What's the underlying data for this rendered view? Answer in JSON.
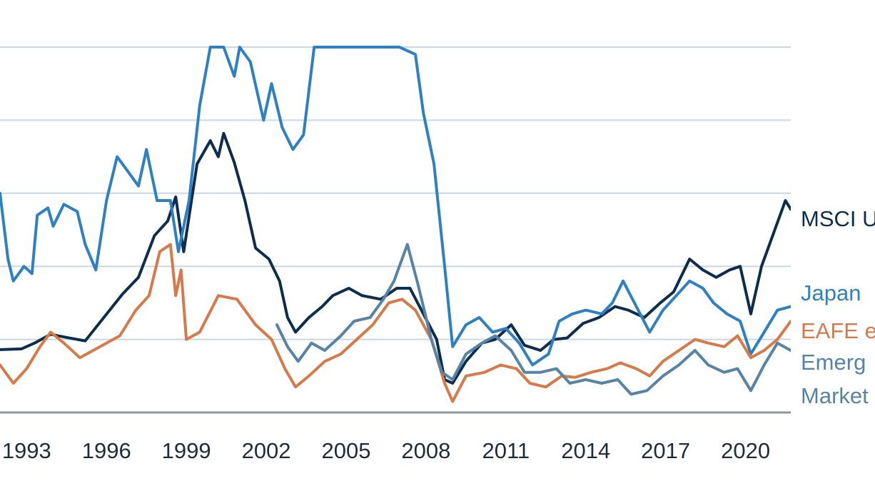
{
  "chart_data": {
    "type": "line",
    "title": "",
    "xlabel": "",
    "ylabel": "",
    "grid": true,
    "x_tick_labels": [
      "1993",
      "1996",
      "1999",
      "2002",
      "2005",
      "2008",
      "2011",
      "2014",
      "2017",
      "2020"
    ],
    "x_ticks": [
      1993,
      1996,
      1999,
      2002,
      2005,
      2008,
      2011,
      2014,
      2017,
      2020
    ],
    "xlim": [
      1992,
      2021.7
    ],
    "ylim": [
      0,
      5
    ],
    "y_gridlines": [
      1,
      2,
      3,
      4,
      5
    ],
    "series": [
      {
        "name": "MSCI U",
        "color": "#0d2d4e",
        "points": [
          [
            1992.0,
            0.86
          ],
          [
            1992.8,
            0.87
          ],
          [
            1993.3,
            0.95
          ],
          [
            1993.9,
            1.07
          ],
          [
            1994.6,
            1.02
          ],
          [
            1995.2,
            0.98
          ],
          [
            1995.9,
            1.3
          ],
          [
            1996.6,
            1.62
          ],
          [
            1997.2,
            1.85
          ],
          [
            1997.8,
            2.42
          ],
          [
            1998.3,
            2.62
          ],
          [
            1998.6,
            2.95
          ],
          [
            1998.9,
            2.2
          ],
          [
            1999.4,
            3.4
          ],
          [
            1999.9,
            3.72
          ],
          [
            2000.2,
            3.5
          ],
          [
            2000.4,
            3.82
          ],
          [
            2000.8,
            3.42
          ],
          [
            2001.2,
            2.9
          ],
          [
            2001.6,
            2.25
          ],
          [
            2002.1,
            2.1
          ],
          [
            2002.5,
            1.8
          ],
          [
            2002.8,
            1.3
          ],
          [
            2003.1,
            1.1
          ],
          [
            2003.6,
            1.3
          ],
          [
            2004.1,
            1.45
          ],
          [
            2004.5,
            1.6
          ],
          [
            2005.1,
            1.7
          ],
          [
            2005.6,
            1.6
          ],
          [
            2006.3,
            1.55
          ],
          [
            2006.9,
            1.7
          ],
          [
            2007.4,
            1.7
          ],
          [
            2007.9,
            1.35
          ],
          [
            2008.4,
            1.0
          ],
          [
            2008.7,
            0.45
          ],
          [
            2009.0,
            0.4
          ],
          [
            2009.5,
            0.7
          ],
          [
            2010.1,
            0.95
          ],
          [
            2010.6,
            1.0
          ],
          [
            2011.2,
            1.2
          ],
          [
            2011.7,
            0.92
          ],
          [
            2012.3,
            0.85
          ],
          [
            2012.8,
            1.0
          ],
          [
            2013.3,
            1.02
          ],
          [
            2013.9,
            1.22
          ],
          [
            2014.5,
            1.3
          ],
          [
            2015.1,
            1.45
          ],
          [
            2015.6,
            1.4
          ],
          [
            2016.2,
            1.3
          ],
          [
            2016.8,
            1.5
          ],
          [
            2017.3,
            1.65
          ],
          [
            2017.9,
            2.1
          ],
          [
            2018.4,
            1.95
          ],
          [
            2018.9,
            1.85
          ],
          [
            2019.4,
            1.95
          ],
          [
            2019.8,
            2.0
          ],
          [
            2020.2,
            1.35
          ],
          [
            2020.6,
            2.0
          ],
          [
            2021.1,
            2.5
          ],
          [
            2021.5,
            2.9
          ],
          [
            2021.7,
            2.78
          ]
        ]
      },
      {
        "name": "Japan",
        "color": "#2f80c2",
        "points": [
          [
            1992.0,
            3.0
          ],
          [
            1992.3,
            2.1
          ],
          [
            1992.5,
            1.8
          ],
          [
            1992.9,
            2.0
          ],
          [
            1993.2,
            1.9
          ],
          [
            1993.4,
            2.7
          ],
          [
            1993.8,
            2.8
          ],
          [
            1994.0,
            2.55
          ],
          [
            1994.4,
            2.85
          ],
          [
            1994.9,
            2.75
          ],
          [
            1995.2,
            2.3
          ],
          [
            1995.6,
            1.95
          ],
          [
            1996.0,
            2.9
          ],
          [
            1996.4,
            3.5
          ],
          [
            1996.8,
            3.3
          ],
          [
            1997.2,
            3.1
          ],
          [
            1997.5,
            3.6
          ],
          [
            1997.9,
            2.9
          ],
          [
            1998.4,
            2.9
          ],
          [
            1998.7,
            2.2
          ],
          [
            1999.1,
            2.9
          ],
          [
            1999.5,
            4.2
          ],
          [
            1999.9,
            5.0
          ],
          [
            2000.4,
            5.0
          ],
          [
            2000.8,
            4.6
          ],
          [
            2001.0,
            5.0
          ],
          [
            2001.4,
            4.8
          ],
          [
            2001.9,
            4.0
          ],
          [
            2002.2,
            4.5
          ],
          [
            2002.6,
            3.9
          ],
          [
            2003.0,
            3.6
          ],
          [
            2003.4,
            3.8
          ],
          [
            2003.8,
            5.0
          ],
          [
            2004.5,
            5.0
          ],
          [
            2005.3,
            5.0
          ],
          [
            2006.2,
            5.0
          ],
          [
            2007.0,
            5.0
          ],
          [
            2007.6,
            4.9
          ],
          [
            2007.9,
            4.1
          ],
          [
            2008.3,
            3.4
          ],
          [
            2008.7,
            2.0
          ],
          [
            2009.0,
            0.9
          ],
          [
            2009.5,
            1.2
          ],
          [
            2010.0,
            1.3
          ],
          [
            2010.5,
            1.1
          ],
          [
            2011.0,
            1.15
          ],
          [
            2011.5,
            0.95
          ],
          [
            2012.0,
            0.65
          ],
          [
            2012.6,
            0.8
          ],
          [
            2013.0,
            1.25
          ],
          [
            2013.5,
            1.35
          ],
          [
            2014.0,
            1.4
          ],
          [
            2014.6,
            1.35
          ],
          [
            2015.0,
            1.5
          ],
          [
            2015.4,
            1.8
          ],
          [
            2015.9,
            1.45
          ],
          [
            2016.4,
            1.1
          ],
          [
            2016.9,
            1.4
          ],
          [
            2017.4,
            1.6
          ],
          [
            2017.9,
            1.8
          ],
          [
            2018.4,
            1.7
          ],
          [
            2018.8,
            1.5
          ],
          [
            2019.3,
            1.35
          ],
          [
            2019.8,
            1.25
          ],
          [
            2020.2,
            0.8
          ],
          [
            2020.7,
            1.1
          ],
          [
            2021.2,
            1.4
          ],
          [
            2021.7,
            1.45
          ]
        ]
      },
      {
        "name": "EAFE e",
        "color": "#d67a4a",
        "points": [
          [
            1992.0,
            0.65
          ],
          [
            1992.5,
            0.4
          ],
          [
            1993.0,
            0.6
          ],
          [
            1993.5,
            0.9
          ],
          [
            1993.9,
            1.1
          ],
          [
            1994.4,
            0.95
          ],
          [
            1995.0,
            0.75
          ],
          [
            1995.5,
            0.85
          ],
          [
            1996.0,
            0.95
          ],
          [
            1996.5,
            1.05
          ],
          [
            1997.1,
            1.4
          ],
          [
            1997.6,
            1.6
          ],
          [
            1998.0,
            2.2
          ],
          [
            1998.4,
            2.3
          ],
          [
            1998.6,
            1.6
          ],
          [
            1998.8,
            1.95
          ],
          [
            1999.0,
            1.0
          ],
          [
            1999.5,
            1.1
          ],
          [
            2000.2,
            1.6
          ],
          [
            2000.9,
            1.55
          ],
          [
            2001.6,
            1.2
          ],
          [
            2002.2,
            1.0
          ],
          [
            2002.7,
            0.6
          ],
          [
            2003.1,
            0.35
          ],
          [
            2003.6,
            0.5
          ],
          [
            2004.2,
            0.7
          ],
          [
            2004.8,
            0.8
          ],
          [
            2005.4,
            1.0
          ],
          [
            2006.0,
            1.2
          ],
          [
            2006.6,
            1.5
          ],
          [
            2007.1,
            1.55
          ],
          [
            2007.6,
            1.4
          ],
          [
            2008.2,
            1.0
          ],
          [
            2008.7,
            0.4
          ],
          [
            2009.0,
            0.15
          ],
          [
            2009.5,
            0.5
          ],
          [
            2010.2,
            0.55
          ],
          [
            2010.8,
            0.65
          ],
          [
            2011.4,
            0.6
          ],
          [
            2011.9,
            0.4
          ],
          [
            2012.5,
            0.35
          ],
          [
            2013.1,
            0.5
          ],
          [
            2013.6,
            0.48
          ],
          [
            2014.2,
            0.55
          ],
          [
            2014.8,
            0.6
          ],
          [
            2015.3,
            0.68
          ],
          [
            2015.9,
            0.6
          ],
          [
            2016.4,
            0.5
          ],
          [
            2016.9,
            0.7
          ],
          [
            2017.5,
            0.85
          ],
          [
            2018.1,
            1.0
          ],
          [
            2018.6,
            0.95
          ],
          [
            2019.2,
            0.9
          ],
          [
            2019.7,
            1.05
          ],
          [
            2020.2,
            0.75
          ],
          [
            2020.7,
            0.85
          ],
          [
            2021.2,
            1.0
          ],
          [
            2021.7,
            1.25
          ]
        ]
      },
      {
        "name": "Emerg",
        "color": "#5783a4",
        "points": [
          [
            2002.4,
            1.2
          ],
          [
            2002.8,
            0.9
          ],
          [
            2003.2,
            0.7
          ],
          [
            2003.7,
            0.95
          ],
          [
            2004.2,
            0.85
          ],
          [
            2004.8,
            1.05
          ],
          [
            2005.3,
            1.25
          ],
          [
            2005.9,
            1.3
          ],
          [
            2006.4,
            1.55
          ],
          [
            2006.8,
            1.8
          ],
          [
            2007.3,
            2.3
          ],
          [
            2007.7,
            1.75
          ],
          [
            2008.2,
            1.0
          ],
          [
            2008.6,
            0.55
          ],
          [
            2009.0,
            0.45
          ],
          [
            2009.5,
            0.8
          ],
          [
            2010.1,
            0.95
          ],
          [
            2010.6,
            1.05
          ],
          [
            2011.2,
            0.85
          ],
          [
            2011.7,
            0.55
          ],
          [
            2012.3,
            0.55
          ],
          [
            2012.9,
            0.6
          ],
          [
            2013.4,
            0.4
          ],
          [
            2014.0,
            0.45
          ],
          [
            2014.6,
            0.4
          ],
          [
            2015.2,
            0.45
          ],
          [
            2015.7,
            0.25
          ],
          [
            2016.3,
            0.3
          ],
          [
            2016.9,
            0.5
          ],
          [
            2017.5,
            0.65
          ],
          [
            2018.1,
            0.85
          ],
          [
            2018.6,
            0.65
          ],
          [
            2019.2,
            0.55
          ],
          [
            2019.7,
            0.6
          ],
          [
            2020.2,
            0.3
          ],
          [
            2020.7,
            0.65
          ],
          [
            2021.2,
            0.95
          ],
          [
            2021.7,
            0.85
          ]
        ]
      }
    ]
  }
}
